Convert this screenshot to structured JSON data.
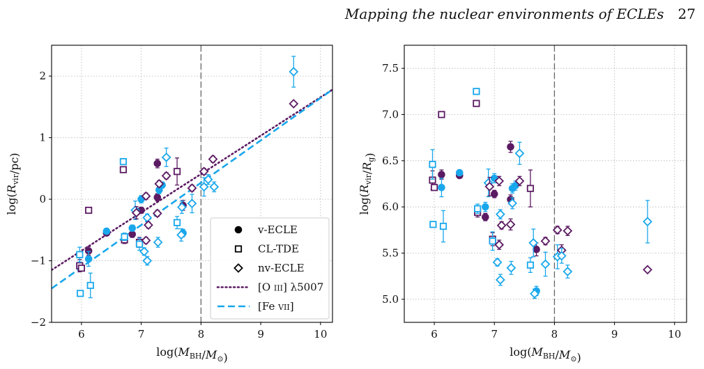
{
  "header": {
    "running_title": "Mapping the nuclear environments of ECLEs",
    "page_number": "27"
  },
  "colors": {
    "purple": "#5b1a62",
    "cyan": "#19a7ec",
    "grid": "#b3b3b3",
    "dashed_vline": "#666666"
  },
  "chart_data": [
    {
      "type": "scatter",
      "xlabel": "log(M_BH/M_⊙)",
      "ylabel": "log(R_vir/pc)",
      "xlim": [
        5.5,
        10.2
      ],
      "ylim": [
        -2.0,
        2.5
      ],
      "xticks": [
        6,
        7,
        8,
        9,
        10
      ],
      "yticks": [
        -2,
        -1,
        0,
        1,
        2
      ],
      "xtick_labels": [
        "6",
        "7",
        "8",
        "9",
        "10"
      ],
      "ytick_labels": [
        "−2",
        "−1",
        "0",
        "1",
        "2"
      ],
      "vline_x": 8,
      "grid": true,
      "legend_location": "lower-right",
      "legend": [
        {
          "label": "v-ECLE",
          "kind": "marker",
          "marker": "circle"
        },
        {
          "label": "CL-TDE",
          "kind": "marker",
          "marker": "square"
        },
        {
          "label": "nv-ECLE",
          "kind": "marker",
          "marker": "diamond"
        },
        {
          "label": "[O iii] λ5007",
          "kind": "line",
          "style": "dotted",
          "color": "purple"
        },
        {
          "label": "[Fe vii]",
          "kind": "line",
          "style": "dashed",
          "color": "cyan"
        }
      ],
      "fit_lines": [
        {
          "name": "[O iii] λ5007",
          "style": "dotted",
          "color": "purple",
          "points": [
            [
              5.5,
              -1.15
            ],
            [
              10.2,
              1.78
            ]
          ]
        },
        {
          "name": "[Fe vii]",
          "style": "dashed",
          "color": "cyan",
          "points": [
            [
              5.5,
              -1.45
            ],
            [
              10.2,
              1.78
            ]
          ]
        }
      ],
      "points": [
        {
          "x": 6.12,
          "y": -0.84,
          "yerr": 0.07,
          "marker": "circle",
          "color": "purple"
        },
        {
          "x": 6.12,
          "y": -0.97,
          "yerr": 0.12,
          "marker": "circle",
          "color": "cyan"
        },
        {
          "x": 6.42,
          "y": -0.55,
          "yerr": 0.04,
          "marker": "circle",
          "color": "purple"
        },
        {
          "x": 6.42,
          "y": -0.52,
          "yerr": 0.04,
          "marker": "circle",
          "color": "cyan"
        },
        {
          "x": 6.85,
          "y": -0.57,
          "yerr": 0.05,
          "marker": "circle",
          "color": "purple"
        },
        {
          "x": 6.85,
          "y": -0.47,
          "yerr": 0.05,
          "marker": "circle",
          "color": "cyan"
        },
        {
          "x": 7.0,
          "y": -0.18,
          "yerr": 0.05,
          "marker": "circle",
          "color": "purple"
        },
        {
          "x": 7.0,
          "y": 0.0,
          "yerr": 0.06,
          "marker": "circle",
          "color": "cyan"
        },
        {
          "x": 7.27,
          "y": 0.58,
          "yerr": 0.07,
          "marker": "circle",
          "color": "purple"
        },
        {
          "x": 7.27,
          "y": 0.03,
          "yerr": 0.06,
          "marker": "circle",
          "color": "purple"
        },
        {
          "x": 7.3,
          "y": 0.15,
          "yerr": 0.06,
          "marker": "circle",
          "color": "cyan"
        },
        {
          "x": 7.35,
          "y": 0.23,
          "yerr": 0.05,
          "marker": "circle",
          "color": "cyan"
        },
        {
          "x": 7.7,
          "y": -0.1,
          "yerr": 0.08,
          "marker": "circle",
          "color": "purple"
        },
        {
          "x": 7.7,
          "y": -0.55,
          "yerr": 0.06,
          "marker": "circle",
          "color": "cyan"
        },
        {
          "x": 5.97,
          "y": -1.08,
          "yerr": 0.1,
          "marker": "square",
          "color": "purple"
        },
        {
          "x": 5.97,
          "y": -0.9,
          "yerr": 0.12,
          "marker": "square",
          "color": "cyan"
        },
        {
          "x": 6.0,
          "y": -1.12,
          "yerr": 0.0,
          "marker": "square",
          "color": "purple"
        },
        {
          "x": 5.98,
          "y": -1.53,
          "yerr": 0.0,
          "marker": "square",
          "color": "cyan"
        },
        {
          "x": 6.12,
          "y": -0.18,
          "yerr": 0.0,
          "marker": "square",
          "color": "purple"
        },
        {
          "x": 6.15,
          "y": -1.4,
          "yerr": 0.2,
          "marker": "square",
          "color": "cyan"
        },
        {
          "x": 6.7,
          "y": 0.48,
          "yerr": 0.0,
          "marker": "square",
          "color": "purple"
        },
        {
          "x": 6.7,
          "y": 0.61,
          "yerr": 0.0,
          "marker": "square",
          "color": "cyan"
        },
        {
          "x": 6.72,
          "y": -0.66,
          "yerr": 0.06,
          "marker": "square",
          "color": "purple"
        },
        {
          "x": 6.72,
          "y": -0.61,
          "yerr": 0.06,
          "marker": "square",
          "color": "cyan"
        },
        {
          "x": 6.97,
          "y": -0.7,
          "yerr": 0.08,
          "marker": "square",
          "color": "purple"
        },
        {
          "x": 6.97,
          "y": -0.73,
          "yerr": 0.1,
          "marker": "square",
          "color": "cyan"
        },
        {
          "x": 7.6,
          "y": 0.45,
          "yerr": 0.22,
          "marker": "square",
          "color": "purple"
        },
        {
          "x": 7.6,
          "y": -0.38,
          "yerr": 0.1,
          "marker": "square",
          "color": "cyan"
        },
        {
          "x": 6.9,
          "y": -0.18,
          "yerr": 0.15,
          "marker": "diamond",
          "color": "cyan"
        },
        {
          "x": 6.92,
          "y": -0.22,
          "yerr": 0.1,
          "marker": "diamond",
          "color": "purple"
        },
        {
          "x": 7.05,
          "y": -0.85,
          "yerr": 0.06,
          "marker": "diamond",
          "color": "cyan"
        },
        {
          "x": 7.08,
          "y": -0.67,
          "yerr": 0.05,
          "marker": "diamond",
          "color": "purple"
        },
        {
          "x": 7.08,
          "y": 0.05,
          "yerr": 0.05,
          "marker": "diamond",
          "color": "purple"
        },
        {
          "x": 7.1,
          "y": -1.0,
          "yerr": 0.07,
          "marker": "diamond",
          "color": "cyan"
        },
        {
          "x": 7.1,
          "y": -0.3,
          "yerr": 0.06,
          "marker": "diamond",
          "color": "cyan"
        },
        {
          "x": 7.12,
          "y": -0.42,
          "yerr": 0.05,
          "marker": "diamond",
          "color": "purple"
        },
        {
          "x": 7.27,
          "y": -0.23,
          "yerr": 0.05,
          "marker": "diamond",
          "color": "purple"
        },
        {
          "x": 7.28,
          "y": -0.7,
          "yerr": 0.08,
          "marker": "diamond",
          "color": "cyan"
        },
        {
          "x": 7.3,
          "y": 0.25,
          "yerr": 0.05,
          "marker": "diamond",
          "color": "purple"
        },
        {
          "x": 7.42,
          "y": 0.68,
          "yerr": 0.15,
          "marker": "diamond",
          "color": "cyan"
        },
        {
          "x": 7.42,
          "y": 0.38,
          "yerr": 0.05,
          "marker": "diamond",
          "color": "purple"
        },
        {
          "x": 7.67,
          "y": -0.58,
          "yerr": 0.1,
          "marker": "diamond",
          "color": "cyan"
        },
        {
          "x": 7.68,
          "y": -0.13,
          "yerr": 0.1,
          "marker": "diamond",
          "color": "cyan"
        },
        {
          "x": 7.85,
          "y": 0.18,
          "yerr": 0.05,
          "marker": "diamond",
          "color": "purple"
        },
        {
          "x": 7.85,
          "y": -0.07,
          "yerr": 0.15,
          "marker": "diamond",
          "color": "cyan"
        },
        {
          "x": 8.05,
          "y": 0.45,
          "yerr": 0.05,
          "marker": "diamond",
          "color": "purple"
        },
        {
          "x": 8.05,
          "y": 0.2,
          "yerr": 0.15,
          "marker": "diamond",
          "color": "cyan"
        },
        {
          "x": 8.12,
          "y": 0.32,
          "yerr": 0.08,
          "marker": "diamond",
          "color": "cyan"
        },
        {
          "x": 8.2,
          "y": 0.65,
          "yerr": 0.05,
          "marker": "diamond",
          "color": "purple"
        },
        {
          "x": 8.22,
          "y": 0.2,
          "yerr": 0.08,
          "marker": "diamond",
          "color": "cyan"
        },
        {
          "x": 9.55,
          "y": 1.55,
          "yerr": 0.0,
          "marker": "diamond",
          "color": "purple"
        },
        {
          "x": 9.55,
          "y": 2.07,
          "yerr": 0.25,
          "marker": "diamond",
          "color": "cyan"
        }
      ]
    },
    {
      "type": "scatter",
      "xlabel": "log(M_BH/M_⊙)",
      "ylabel": "log(R_vir/R_g)",
      "xlim": [
        5.5,
        10.2
      ],
      "ylim": [
        4.75,
        7.75
      ],
      "xticks": [
        6,
        7,
        8,
        9,
        10
      ],
      "yticks": [
        5.0,
        5.5,
        6.0,
        6.5,
        7.0,
        7.5
      ],
      "xtick_labels": [
        "6",
        "7",
        "8",
        "9",
        "10"
      ],
      "ytick_labels": [
        "5.0",
        "5.5",
        "6.0",
        "6.5",
        "7.0",
        "7.5"
      ],
      "vline_x": 8,
      "grid": true,
      "points": [
        {
          "x": 6.12,
          "y": 6.35,
          "yerr": 0.05,
          "marker": "circle",
          "color": "purple"
        },
        {
          "x": 6.12,
          "y": 6.21,
          "yerr": 0.1,
          "marker": "circle",
          "color": "cyan"
        },
        {
          "x": 6.42,
          "y": 6.34,
          "yerr": 0.03,
          "marker": "circle",
          "color": "purple"
        },
        {
          "x": 6.42,
          "y": 6.37,
          "yerr": 0.03,
          "marker": "circle",
          "color": "cyan"
        },
        {
          "x": 6.85,
          "y": 5.89,
          "yerr": 0.04,
          "marker": "circle",
          "color": "purple"
        },
        {
          "x": 6.85,
          "y": 6.0,
          "yerr": 0.05,
          "marker": "circle",
          "color": "cyan"
        },
        {
          "x": 7.0,
          "y": 6.14,
          "yerr": 0.04,
          "marker": "circle",
          "color": "purple"
        },
        {
          "x": 7.0,
          "y": 6.31,
          "yerr": 0.05,
          "marker": "circle",
          "color": "cyan"
        },
        {
          "x": 7.27,
          "y": 6.65,
          "yerr": 0.06,
          "marker": "circle",
          "color": "purple"
        },
        {
          "x": 7.27,
          "y": 6.08,
          "yerr": 0.05,
          "marker": "circle",
          "color": "purple"
        },
        {
          "x": 7.3,
          "y": 6.2,
          "yerr": 0.05,
          "marker": "circle",
          "color": "cyan"
        },
        {
          "x": 7.35,
          "y": 6.23,
          "yerr": 0.05,
          "marker": "circle",
          "color": "cyan"
        },
        {
          "x": 7.7,
          "y": 5.54,
          "yerr": 0.07,
          "marker": "circle",
          "color": "purple"
        },
        {
          "x": 7.7,
          "y": 5.09,
          "yerr": 0.05,
          "marker": "circle",
          "color": "cyan"
        },
        {
          "x": 5.97,
          "y": 6.29,
          "yerr": 0.1,
          "marker": "square",
          "color": "purple"
        },
        {
          "x": 5.97,
          "y": 6.46,
          "yerr": 0.16,
          "marker": "square",
          "color": "cyan"
        },
        {
          "x": 6.0,
          "y": 6.21,
          "yerr": 0.0,
          "marker": "square",
          "color": "purple"
        },
        {
          "x": 5.98,
          "y": 5.81,
          "yerr": 0.0,
          "marker": "square",
          "color": "cyan"
        },
        {
          "x": 6.12,
          "y": 7.0,
          "yerr": 0.0,
          "marker": "square",
          "color": "purple"
        },
        {
          "x": 6.15,
          "y": 5.79,
          "yerr": 0.17,
          "marker": "square",
          "color": "cyan"
        },
        {
          "x": 6.7,
          "y": 7.12,
          "yerr": 0.0,
          "marker": "square",
          "color": "purple"
        },
        {
          "x": 6.7,
          "y": 7.25,
          "yerr": 0.0,
          "marker": "square",
          "color": "cyan"
        },
        {
          "x": 6.72,
          "y": 5.94,
          "yerr": 0.05,
          "marker": "square",
          "color": "purple"
        },
        {
          "x": 6.72,
          "y": 5.98,
          "yerr": 0.05,
          "marker": "square",
          "color": "cyan"
        },
        {
          "x": 6.97,
          "y": 5.65,
          "yerr": 0.07,
          "marker": "square",
          "color": "purple"
        },
        {
          "x": 6.97,
          "y": 5.63,
          "yerr": 0.1,
          "marker": "square",
          "color": "cyan"
        },
        {
          "x": 7.6,
          "y": 6.2,
          "yerr": 0.2,
          "marker": "square",
          "color": "purple"
        },
        {
          "x": 7.6,
          "y": 5.37,
          "yerr": 0.08,
          "marker": "square",
          "color": "cyan"
        },
        {
          "x": 6.9,
          "y": 6.26,
          "yerr": 0.15,
          "marker": "diamond",
          "color": "cyan"
        },
        {
          "x": 6.92,
          "y": 6.22,
          "yerr": 0.1,
          "marker": "diamond",
          "color": "purple"
        },
        {
          "x": 7.05,
          "y": 5.4,
          "yerr": 0.04,
          "marker": "diamond",
          "color": "cyan"
        },
        {
          "x": 7.08,
          "y": 5.59,
          "yerr": 0.05,
          "marker": "diamond",
          "color": "purple"
        },
        {
          "x": 7.08,
          "y": 6.28,
          "yerr": 0.05,
          "marker": "diamond",
          "color": "purple"
        },
        {
          "x": 7.1,
          "y": 5.21,
          "yerr": 0.06,
          "marker": "diamond",
          "color": "cyan"
        },
        {
          "x": 7.1,
          "y": 5.92,
          "yerr": 0.05,
          "marker": "diamond",
          "color": "cyan"
        },
        {
          "x": 7.12,
          "y": 5.8,
          "yerr": 0.04,
          "marker": "diamond",
          "color": "purple"
        },
        {
          "x": 7.27,
          "y": 5.81,
          "yerr": 0.06,
          "marker": "diamond",
          "color": "purple"
        },
        {
          "x": 7.28,
          "y": 5.34,
          "yerr": 0.07,
          "marker": "diamond",
          "color": "cyan"
        },
        {
          "x": 7.3,
          "y": 6.04,
          "yerr": 0.06,
          "marker": "diamond",
          "color": "cyan"
        },
        {
          "x": 7.42,
          "y": 6.58,
          "yerr": 0.12,
          "marker": "diamond",
          "color": "cyan"
        },
        {
          "x": 7.42,
          "y": 6.28,
          "yerr": 0.05,
          "marker": "diamond",
          "color": "purple"
        },
        {
          "x": 7.67,
          "y": 5.06,
          "yerr": 0.05,
          "marker": "diamond",
          "color": "cyan"
        },
        {
          "x": 7.65,
          "y": 5.61,
          "yerr": 0.15,
          "marker": "diamond",
          "color": "cyan"
        },
        {
          "x": 7.85,
          "y": 5.63,
          "yerr": 0.04,
          "marker": "diamond",
          "color": "purple"
        },
        {
          "x": 7.85,
          "y": 5.38,
          "yerr": 0.13,
          "marker": "diamond",
          "color": "cyan"
        },
        {
          "x": 8.05,
          "y": 5.75,
          "yerr": 0.04,
          "marker": "diamond",
          "color": "purple"
        },
        {
          "x": 8.05,
          "y": 5.46,
          "yerr": 0.13,
          "marker": "diamond",
          "color": "cyan"
        },
        {
          "x": 8.12,
          "y": 5.53,
          "yerr": 0.06,
          "marker": "diamond",
          "color": "purple"
        },
        {
          "x": 8.12,
          "y": 5.47,
          "yerr": 0.08,
          "marker": "diamond",
          "color": "cyan"
        },
        {
          "x": 8.22,
          "y": 5.74,
          "yerr": 0.05,
          "marker": "diamond",
          "color": "purple"
        },
        {
          "x": 8.22,
          "y": 5.3,
          "yerr": 0.07,
          "marker": "diamond",
          "color": "cyan"
        },
        {
          "x": 9.55,
          "y": 5.32,
          "yerr": 0.0,
          "marker": "diamond",
          "color": "purple"
        },
        {
          "x": 9.55,
          "y": 5.84,
          "yerr": 0.23,
          "marker": "diamond",
          "color": "cyan"
        }
      ]
    }
  ]
}
